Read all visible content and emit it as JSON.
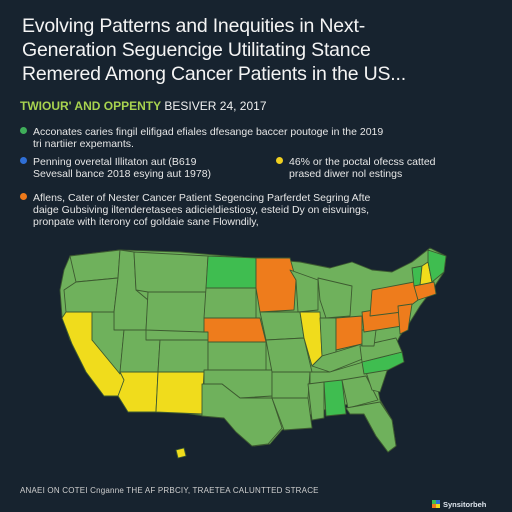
{
  "title": {
    "line1": "Evolving Patterns and Inequities in Next-",
    "line2": "Generation Seguencige Utilitating Stance",
    "line3": "Remered Among Cancer Patients in the US..."
  },
  "subtitle": {
    "highlight": "TWIOUR' AND OPPENTY",
    "rest": "BESIVER 24, 2017"
  },
  "bullets": [
    {
      "color": "#3fae5a",
      "line1": "Acconates caries fingil elifigad efiales dfesange baccer poutoge in the 2019",
      "line2": "tri nartiier expemants."
    },
    {
      "color": "#2f6fd6",
      "line1": "Penning overetal Illitaton aut (B619",
      "line2": "Sevesall bance 2018 esying aut 1978)"
    },
    {
      "color": "#f0d020",
      "line1": "46% or the poctal ofecss catted",
      "line2": "prased diwer nol estings"
    },
    {
      "color": "#ef7a1a",
      "line1": "Aflens, Cater of Nester Cancer Patient Segencing Parferdet Segring Afte",
      "line2": "daige Gubsiving iltenderetasees adicieldiestiosy, esteid Dy on eisvuings,",
      "line3": "pronpate with iterony cof goldaie sane Flowndily,"
    }
  ],
  "colors": {
    "light_green": "#6fb15c",
    "bright_green": "#3fbd50",
    "yellow": "#f0dc1c",
    "orange": "#ee7c1c",
    "border": "#3d5a30",
    "background": "#17232f"
  },
  "footer": "ANAEI ON COTEI Cnganne THE AF PRBCIY, TRAETEA CALUNTTED STRACE",
  "logo": "Synsitorbeh"
}
